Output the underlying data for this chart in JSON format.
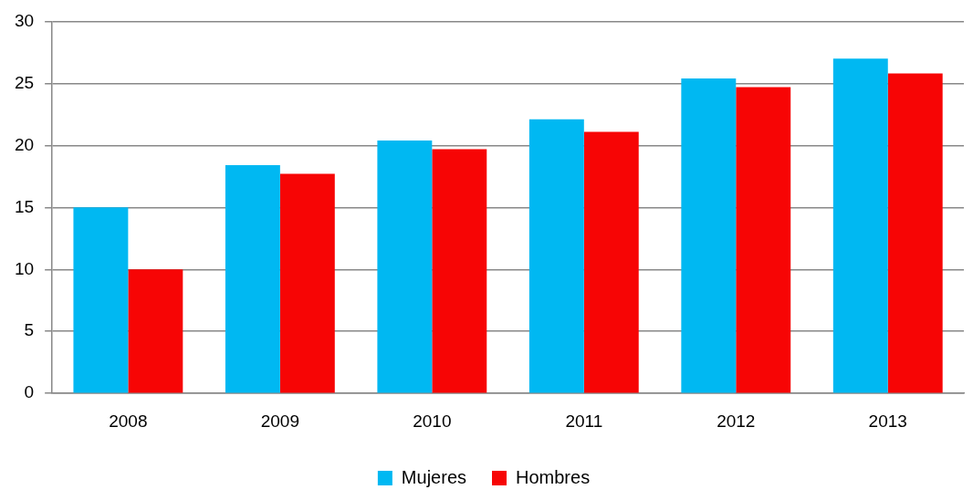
{
  "chart_data": {
    "type": "bar",
    "categories": [
      "2008",
      "2009",
      "2010",
      "2011",
      "2012",
      "2013"
    ],
    "series": [
      {
        "name": "Mujeres",
        "color": "#00b8f2",
        "values": [
          15,
          18.4,
          20.4,
          22.1,
          25.4,
          27
        ]
      },
      {
        "name": "Hombres",
        "color": "#f70505",
        "values": [
          10,
          17.7,
          19.7,
          21.1,
          24.7,
          25.8
        ]
      }
    ],
    "ylim": [
      0,
      30
    ],
    "yticks": [
      0,
      5,
      10,
      15,
      20,
      25,
      30
    ],
    "grid": "y",
    "legend": "bottom"
  }
}
